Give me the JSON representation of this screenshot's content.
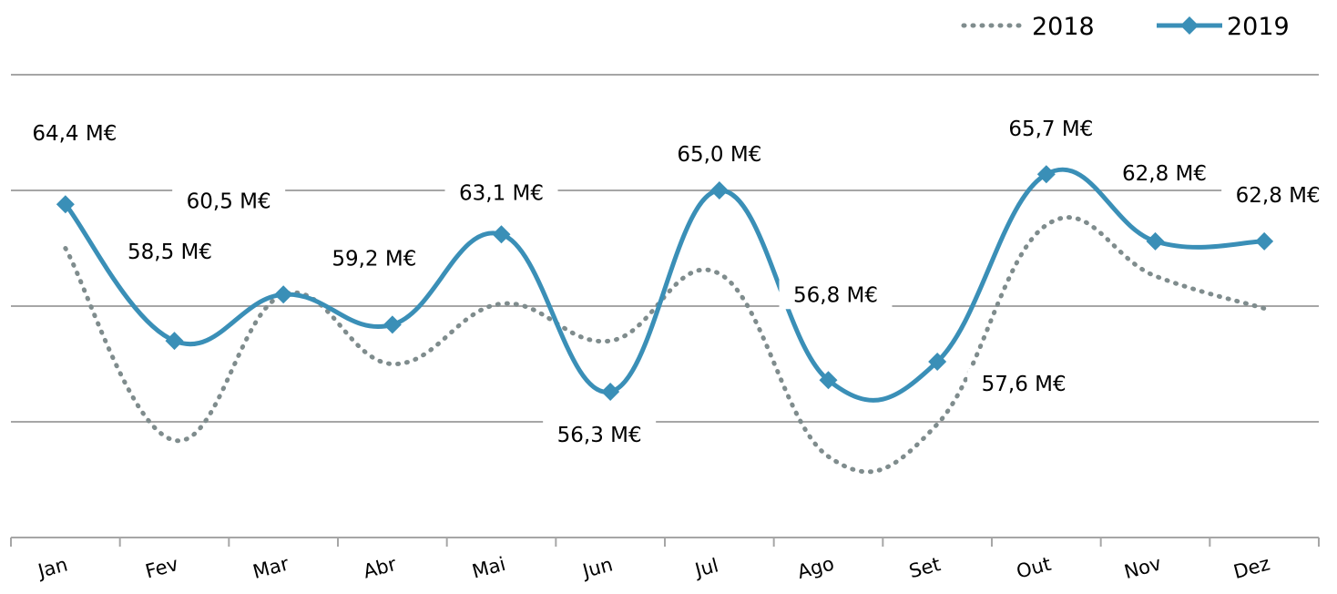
{
  "chart_data": {
    "type": "line",
    "categories": [
      "Jan",
      "Fev",
      "Mar",
      "Abr",
      "Mai",
      "Jun",
      "Jul",
      "Ago",
      "Set",
      "Out",
      "Nov",
      "Dez"
    ],
    "series": [
      {
        "name": "2018",
        "values": [
          62.5,
          54.2,
          60.5,
          57.5,
          60.1,
          58.5,
          61.4,
          53.5,
          54.9,
          63.5,
          61.3,
          59.9
        ],
        "color": "#7f8c8d",
        "style": "dotted",
        "marker": "none"
      },
      {
        "name": "2019",
        "values": [
          64.4,
          58.5,
          60.5,
          59.2,
          63.1,
          56.3,
          65.0,
          56.8,
          57.6,
          65.7,
          62.8,
          62.8
        ],
        "labels": [
          "64,4 M€",
          "58,5 M€",
          "60,5 M€",
          "59,2 M€",
          "63,1 M€",
          "56,3 M€",
          "65,0 M€",
          "56,8 M€",
          "57,6 M€",
          "65,7 M€",
          "62,8 M€",
          "62,8 M€"
        ],
        "color": "#3a8fb7",
        "style": "solid",
        "marker": "diamond"
      }
    ],
    "ylim": [
      50,
      70
    ],
    "grid": true,
    "legend_position": "top-right",
    "xlabel": "",
    "ylabel": ""
  }
}
